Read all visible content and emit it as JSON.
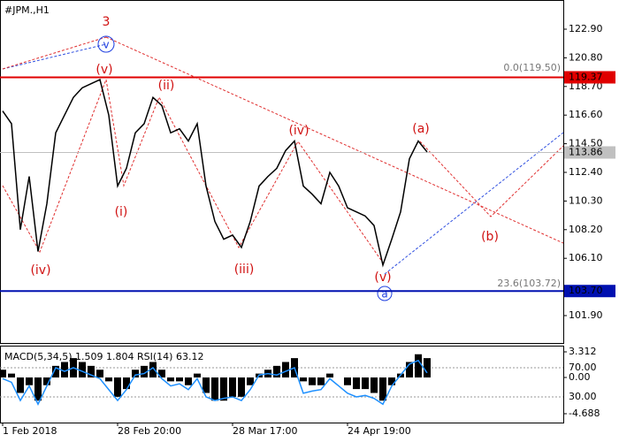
{
  "chart_data": [
    {
      "type": "line",
      "title": "#JPM.,H1",
      "categories": [
        "1 Feb 2018",
        null,
        null,
        null,
        null,
        null,
        null,
        null,
        null,
        null,
        null,
        null,
        null,
        "28 Feb 20:00",
        null,
        null,
        null,
        null,
        null,
        null,
        null,
        null,
        null,
        null,
        null,
        null,
        "28 Mar 17:00",
        null,
        null,
        null,
        null,
        null,
        null,
        null,
        null,
        null,
        null,
        null,
        null,
        "24 Apr 19:00",
        null,
        null,
        null,
        null,
        null,
        null,
        null,
        null,
        null
      ],
      "series": [
        {
          "color": "#000000",
          "values": [
            116.9,
            115.97,
            108.2,
            112.1,
            106.6,
            110.1,
            115.3,
            116.6,
            117.9,
            118.6,
            118.9,
            119.2,
            116.6,
            111.4,
            112.7,
            115.3,
            115.97,
            117.9,
            117.3,
            115.3,
            115.6,
            114.7,
            115.97,
            111.4,
            108.8,
            107.5,
            107.8,
            106.9,
            108.8,
            111.4,
            112.1,
            112.7,
            114.0,
            114.7,
            111.4,
            110.8,
            110.1,
            112.4,
            111.4,
            109.8,
            109.5,
            109.2,
            108.5,
            105.6,
            107.5,
            109.5,
            113.4,
            114.7,
            113.9
          ]
        }
      ],
      "ylim": [
        99.89,
        125.04
      ],
      "yticks": [
        {
          "value": 122.9,
          "label": "122.90"
        },
        {
          "value": 120.8,
          "label": "120.80"
        },
        {
          "value": 118.7,
          "label": "118.70"
        },
        {
          "value": 116.6,
          "label": "116.60"
        },
        {
          "value": 114.5,
          "label": "114.50"
        },
        {
          "value": 112.4,
          "label": "112.40"
        },
        {
          "value": 110.3,
          "label": "110.30"
        },
        {
          "value": 108.2,
          "label": "108.20"
        },
        {
          "value": 106.1,
          "label": "106.10"
        },
        {
          "value": 101.9,
          "label": "101.90"
        }
      ],
      "levels": [
        {
          "value": 119.37,
          "label": "119.37",
          "color": "#e00000"
        },
        {
          "value": 113.86,
          "label": "113.86",
          "color": "#c0c0c0"
        },
        {
          "value": 103.7,
          "label": "103.70",
          "color": "#0010b0"
        }
      ],
      "annotations": [
        "3",
        "v",
        "(v)",
        "(ii)",
        "(iv)",
        "(i)",
        "(iv)",
        "(iii)",
        "(v)",
        "a",
        "(a)",
        "(b)",
        "0.0(119.50)",
        "23.6(103.72)"
      ]
    },
    {
      "type": "indicator",
      "title": "MACD(5,34,5) 1.509 1.804 RSI(14) 63.12",
      "series": [
        {
          "type": "bar",
          "color": "#000000",
          "values": [
            1,
            0.5,
            -2,
            -1,
            -3,
            -1,
            1.5,
            2,
            2.5,
            2,
            1.5,
            1,
            -0.5,
            -2.5,
            -1.5,
            1,
            1.5,
            2,
            1,
            -0.5,
            -0.5,
            -1,
            0.5,
            -2,
            -3,
            -3,
            -2.5,
            -2.5,
            -1,
            0.5,
            1,
            1.5,
            2,
            2.5,
            -0.5,
            -1,
            -1,
            0.5,
            0,
            -1,
            -1.5,
            -1.5,
            -2,
            -3,
            -1,
            0.5,
            2,
            3,
            2.5
          ]
        },
        {
          "type": "line",
          "axis": "y2",
          "color": "#1e90ff",
          "values": [
            55,
            50,
            25,
            45,
            20,
            45,
            70,
            65,
            70,
            65,
            60,
            55,
            40,
            25,
            40,
            60,
            62,
            70,
            55,
            45,
            48,
            40,
            55,
            30,
            25,
            28,
            30,
            25,
            40,
            60,
            62,
            60,
            65,
            70,
            35,
            38,
            40,
            55,
            45,
            35,
            30,
            32,
            28,
            20,
            45,
            60,
            75,
            80,
            63
          ]
        }
      ],
      "ylim": [
        -5.83,
        4.0
      ],
      "yticks": [
        {
          "value": 3.312,
          "label": "3.312"
        },
        {
          "value": 0,
          "label": "0.00"
        },
        {
          "value": -4.688,
          "label": "-4.688"
        }
      ],
      "y2lim": [
        -5.2,
        99.1
      ],
      "y2ticks": [
        {
          "value": 70,
          "label": "70.00"
        },
        {
          "value": 30,
          "label": "30.00"
        }
      ]
    }
  ]
}
